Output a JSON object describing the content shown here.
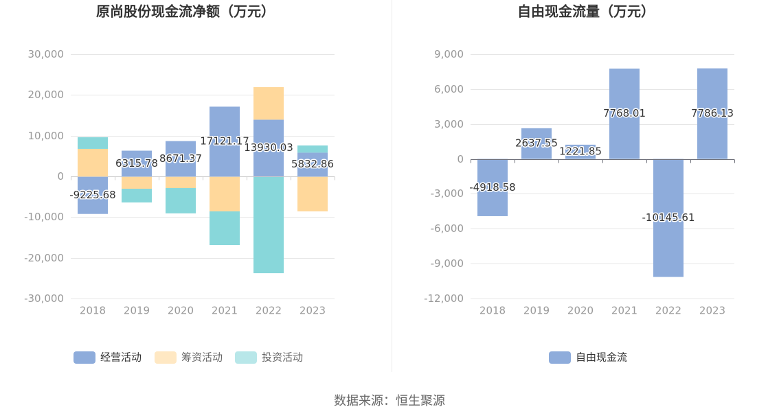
{
  "chart_data": [
    {
      "type": "bar",
      "stacked": true,
      "title": "原尚股份现金流净额（万元）",
      "categories": [
        "2018",
        "2019",
        "2020",
        "2021",
        "2022",
        "2023"
      ],
      "ylim": [
        -30000,
        30000
      ],
      "yticks": [
        30000,
        20000,
        10000,
        0,
        -10000,
        -20000,
        -30000
      ],
      "ytick_labels": [
        "30,000",
        "20,000",
        "10,000",
        "0",
        "-10,000",
        "-20,000",
        "-30,000"
      ],
      "grid": true,
      "legend_position": "bottom",
      "series": [
        {
          "name": "经营活动",
          "color": "#8eacdb",
          "show_labels": true,
          "values": [
            -9225.68,
            6315.78,
            8671.37,
            17121.17,
            13930.03,
            5832.86
          ]
        },
        {
          "name": "筹资活动",
          "color": "#ffd89b",
          "show_labels": false,
          "values": [
            6750,
            -3040,
            -2870,
            -8600,
            7990,
            -8600
          ]
        },
        {
          "name": "投资活动",
          "color": "#88d7da",
          "show_labels": false,
          "values": [
            2870,
            -3370,
            -6220,
            -8260,
            -23780,
            1760
          ]
        }
      ]
    },
    {
      "type": "bar",
      "stacked": false,
      "title": "自由现金流量（万元）",
      "categories": [
        "2018",
        "2019",
        "2020",
        "2021",
        "2022",
        "2023"
      ],
      "ylim": [
        -12000,
        9000
      ],
      "yticks": [
        9000,
        6000,
        3000,
        0,
        -3000,
        -6000,
        -9000,
        -12000
      ],
      "ytick_labels": [
        "9,000",
        "6,000",
        "3,000",
        "0",
        "-3,000",
        "-6,000",
        "-9,000",
        "-12,000"
      ],
      "grid": true,
      "legend_position": "bottom",
      "series": [
        {
          "name": "自由现金流",
          "color": "#8eacdb",
          "show_labels": true,
          "values": [
            -4918.58,
            2637.55,
            1221.85,
            7768.01,
            -10145.61,
            7786.13
          ]
        }
      ]
    }
  ],
  "source": "数据来源：恒生聚源"
}
